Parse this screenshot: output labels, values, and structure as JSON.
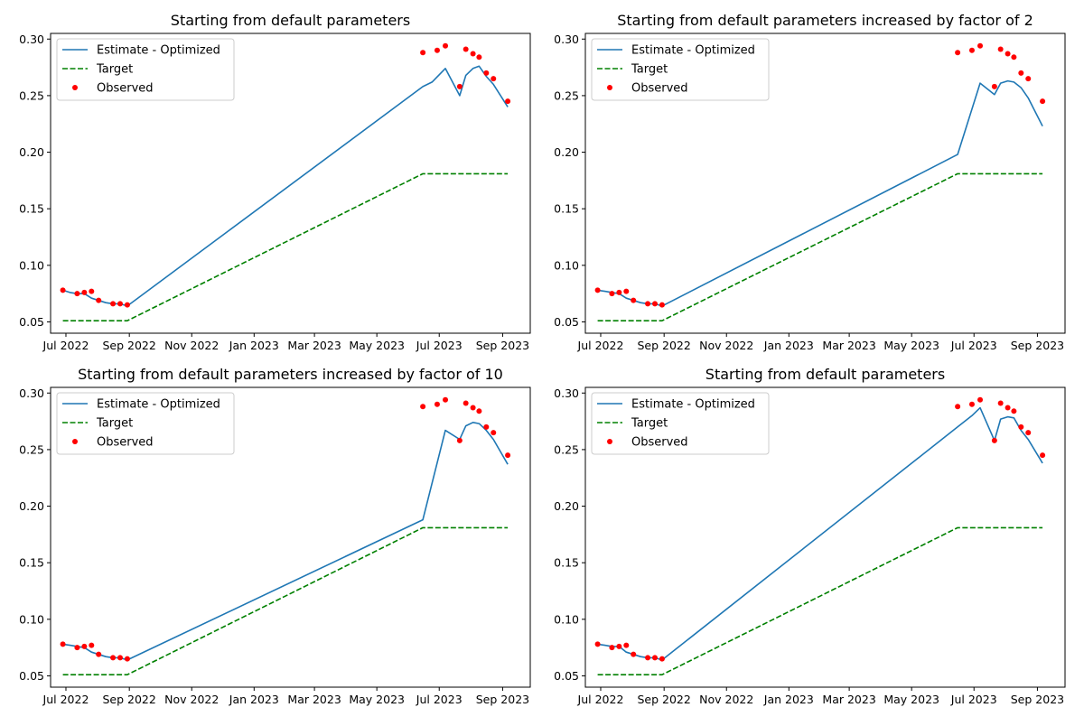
{
  "chart_data": [
    {
      "type": "line",
      "title": "Starting from default parameters",
      "xlabel": "",
      "ylabel": "",
      "x_ticks": [
        "Jul 2022",
        "Sep 2022",
        "Nov 2022",
        "Jan 2023",
        "Mar 2023",
        "May 2023",
        "Jul 2023",
        "Sep 2023"
      ],
      "y_ticks": [
        "0.05",
        "0.10",
        "0.15",
        "0.20",
        "0.25",
        "0.30"
      ],
      "ylim": [
        0.04,
        0.305
      ],
      "xlim": [
        "2022-06-16",
        "2023-09-28"
      ],
      "legend": {
        "placement": "upper-left",
        "entries": [
          "Estimate - Optimized",
          "Target",
          "Observed"
        ]
      },
      "series": [
        {
          "name": "Estimate - Optimized",
          "kind": "line",
          "color": "#1f77b4",
          "points": [
            [
              "2022-06-28",
              0.078
            ],
            [
              "2022-07-05",
              0.076
            ],
            [
              "2022-07-12",
              0.075
            ],
            [
              "2022-07-19",
              0.075
            ],
            [
              "2022-07-26",
              0.071
            ],
            [
              "2022-08-09",
              0.067
            ],
            [
              "2022-08-16",
              0.066
            ],
            [
              "2022-08-23",
              0.066
            ],
            [
              "2022-08-30",
              0.064
            ],
            [
              "2023-06-15",
              0.258
            ],
            [
              "2023-06-24",
              0.262
            ],
            [
              "2023-07-07",
              0.274
            ],
            [
              "2023-07-21",
              0.25
            ],
            [
              "2023-07-27",
              0.268
            ],
            [
              "2023-08-03",
              0.274
            ],
            [
              "2023-08-09",
              0.276
            ],
            [
              "2023-08-16",
              0.267
            ],
            [
              "2023-08-23",
              0.26
            ],
            [
              "2023-09-06",
              0.24
            ]
          ]
        },
        {
          "name": "Target",
          "kind": "dashed",
          "color": "#008000",
          "points": [
            [
              "2022-06-28",
              0.051
            ],
            [
              "2022-08-30",
              0.051
            ],
            [
              "2023-06-15",
              0.181
            ],
            [
              "2023-09-06",
              0.181
            ]
          ]
        },
        {
          "name": "Observed",
          "kind": "scatter",
          "color": "#ff0000",
          "points": [
            [
              "2022-06-28",
              0.078
            ],
            [
              "2022-07-12",
              0.075
            ],
            [
              "2022-07-19",
              0.076
            ],
            [
              "2022-07-26",
              0.077
            ],
            [
              "2022-08-02",
              0.069
            ],
            [
              "2022-08-16",
              0.066
            ],
            [
              "2022-08-23",
              0.066
            ],
            [
              "2022-08-30",
              0.065
            ],
            [
              "2023-06-15",
              0.288
            ],
            [
              "2023-06-29",
              0.29
            ],
            [
              "2023-07-07",
              0.294
            ],
            [
              "2023-07-21",
              0.258
            ],
            [
              "2023-07-27",
              0.291
            ],
            [
              "2023-08-03",
              0.287
            ],
            [
              "2023-08-09",
              0.284
            ],
            [
              "2023-08-16",
              0.27
            ],
            [
              "2023-08-23",
              0.265
            ],
            [
              "2023-09-06",
              0.245
            ]
          ]
        }
      ]
    },
    {
      "type": "line",
      "title": "Starting from default parameters increased by factor of 2",
      "xlabel": "",
      "ylabel": "",
      "x_ticks": [
        "Jul 2022",
        "Sep 2022",
        "Nov 2022",
        "Jan 2023",
        "Mar 2023",
        "May 2023",
        "Jul 2023",
        "Sep 2023"
      ],
      "y_ticks": [
        "0.05",
        "0.10",
        "0.15",
        "0.20",
        "0.25",
        "0.30"
      ],
      "ylim": [
        0.04,
        0.305
      ],
      "xlim": [
        "2022-06-16",
        "2023-09-28"
      ],
      "legend": {
        "placement": "upper-left",
        "entries": [
          "Estimate - Optimized",
          "Target",
          "Observed"
        ]
      },
      "series": [
        {
          "name": "Estimate - Optimized",
          "kind": "line",
          "color": "#1f77b4",
          "points": [
            [
              "2022-06-28",
              0.078
            ],
            [
              "2022-07-05",
              0.077
            ],
            [
              "2022-07-12",
              0.076
            ],
            [
              "2022-07-19",
              0.075
            ],
            [
              "2022-07-26",
              0.071
            ],
            [
              "2022-08-09",
              0.067
            ],
            [
              "2022-08-16",
              0.066
            ],
            [
              "2022-08-23",
              0.066
            ],
            [
              "2022-08-30",
              0.064
            ],
            [
              "2023-06-15",
              0.198
            ],
            [
              "2023-07-07",
              0.261
            ],
            [
              "2023-07-21",
              0.251
            ],
            [
              "2023-07-27",
              0.261
            ],
            [
              "2023-08-03",
              0.263
            ],
            [
              "2023-08-09",
              0.262
            ],
            [
              "2023-08-16",
              0.257
            ],
            [
              "2023-08-23",
              0.248
            ],
            [
              "2023-09-06",
              0.223
            ]
          ]
        },
        {
          "name": "Target",
          "kind": "dashed",
          "color": "#008000",
          "points": [
            [
              "2022-06-28",
              0.051
            ],
            [
              "2022-08-30",
              0.051
            ],
            [
              "2023-06-15",
              0.181
            ],
            [
              "2023-09-06",
              0.181
            ]
          ]
        },
        {
          "name": "Observed",
          "kind": "scatter",
          "color": "#ff0000",
          "points": [
            [
              "2022-06-28",
              0.078
            ],
            [
              "2022-07-12",
              0.075
            ],
            [
              "2022-07-19",
              0.076
            ],
            [
              "2022-07-26",
              0.077
            ],
            [
              "2022-08-02",
              0.069
            ],
            [
              "2022-08-16",
              0.066
            ],
            [
              "2022-08-23",
              0.066
            ],
            [
              "2022-08-30",
              0.065
            ],
            [
              "2023-06-15",
              0.288
            ],
            [
              "2023-06-29",
              0.29
            ],
            [
              "2023-07-07",
              0.294
            ],
            [
              "2023-07-21",
              0.258
            ],
            [
              "2023-07-27",
              0.291
            ],
            [
              "2023-08-03",
              0.287
            ],
            [
              "2023-08-09",
              0.284
            ],
            [
              "2023-08-16",
              0.27
            ],
            [
              "2023-08-23",
              0.265
            ],
            [
              "2023-09-06",
              0.245
            ]
          ]
        }
      ]
    },
    {
      "type": "line",
      "title": "Starting from default parameters increased by factor of 10",
      "xlabel": "",
      "ylabel": "",
      "x_ticks": [
        "Jul 2022",
        "Sep 2022",
        "Nov 2022",
        "Jan 2023",
        "Mar 2023",
        "May 2023",
        "Jul 2023",
        "Sep 2023"
      ],
      "y_ticks": [
        "0.05",
        "0.10",
        "0.15",
        "0.20",
        "0.25",
        "0.30"
      ],
      "ylim": [
        0.04,
        0.305
      ],
      "xlim": [
        "2022-06-16",
        "2023-09-28"
      ],
      "legend": {
        "placement": "upper-left",
        "entries": [
          "Estimate - Optimized",
          "Target",
          "Observed"
        ]
      },
      "series": [
        {
          "name": "Estimate - Optimized",
          "kind": "line",
          "color": "#1f77b4",
          "points": [
            [
              "2022-06-28",
              0.078
            ],
            [
              "2022-07-05",
              0.077
            ],
            [
              "2022-07-12",
              0.076
            ],
            [
              "2022-07-19",
              0.075
            ],
            [
              "2022-07-26",
              0.071
            ],
            [
              "2022-08-09",
              0.067
            ],
            [
              "2022-08-16",
              0.066
            ],
            [
              "2022-08-23",
              0.066
            ],
            [
              "2022-08-30",
              0.064
            ],
            [
              "2023-06-15",
              0.188
            ],
            [
              "2023-07-07",
              0.267
            ],
            [
              "2023-07-21",
              0.259
            ],
            [
              "2023-07-27",
              0.271
            ],
            [
              "2023-08-03",
              0.274
            ],
            [
              "2023-08-09",
              0.273
            ],
            [
              "2023-08-16",
              0.267
            ],
            [
              "2023-08-23",
              0.259
            ],
            [
              "2023-09-06",
              0.237
            ]
          ]
        },
        {
          "name": "Target",
          "kind": "dashed",
          "color": "#008000",
          "points": [
            [
              "2022-06-28",
              0.051
            ],
            [
              "2022-08-30",
              0.051
            ],
            [
              "2023-06-15",
              0.181
            ],
            [
              "2023-09-06",
              0.181
            ]
          ]
        },
        {
          "name": "Observed",
          "kind": "scatter",
          "color": "#ff0000",
          "points": [
            [
              "2022-06-28",
              0.078
            ],
            [
              "2022-07-12",
              0.075
            ],
            [
              "2022-07-19",
              0.076
            ],
            [
              "2022-07-26",
              0.077
            ],
            [
              "2022-08-02",
              0.069
            ],
            [
              "2022-08-16",
              0.066
            ],
            [
              "2022-08-23",
              0.066
            ],
            [
              "2022-08-30",
              0.065
            ],
            [
              "2023-06-15",
              0.288
            ],
            [
              "2023-06-29",
              0.29
            ],
            [
              "2023-07-07",
              0.294
            ],
            [
              "2023-07-21",
              0.258
            ],
            [
              "2023-07-27",
              0.291
            ],
            [
              "2023-08-03",
              0.287
            ],
            [
              "2023-08-09",
              0.284
            ],
            [
              "2023-08-16",
              0.27
            ],
            [
              "2023-08-23",
              0.265
            ],
            [
              "2023-09-06",
              0.245
            ]
          ]
        }
      ]
    },
    {
      "type": "line",
      "title": "Starting from default parameters",
      "xlabel": "",
      "ylabel": "",
      "x_ticks": [
        "Jul 2022",
        "Sep 2022",
        "Nov 2022",
        "Jan 2023",
        "Mar 2023",
        "May 2023",
        "Jul 2023",
        "Sep 2023"
      ],
      "y_ticks": [
        "0.05",
        "0.10",
        "0.15",
        "0.20",
        "0.25",
        "0.30"
      ],
      "ylim": [
        0.04,
        0.305
      ],
      "xlim": [
        "2022-06-16",
        "2023-09-28"
      ],
      "legend": {
        "placement": "upper-left",
        "entries": [
          "Estimate - Optimized",
          "Target",
          "Observed"
        ]
      },
      "series": [
        {
          "name": "Estimate - Optimized",
          "kind": "line",
          "color": "#1f77b4",
          "points": [
            [
              "2022-06-28",
              0.078
            ],
            [
              "2022-07-05",
              0.077
            ],
            [
              "2022-07-12",
              0.076
            ],
            [
              "2022-07-19",
              0.076
            ],
            [
              "2022-07-26",
              0.071
            ],
            [
              "2022-08-09",
              0.067
            ],
            [
              "2022-08-16",
              0.066
            ],
            [
              "2022-08-23",
              0.066
            ],
            [
              "2022-08-30",
              0.064
            ],
            [
              "2023-06-15",
              0.27
            ],
            [
              "2023-06-29",
              0.28
            ],
            [
              "2023-07-07",
              0.287
            ],
            [
              "2023-07-21",
              0.258
            ],
            [
              "2023-07-27",
              0.277
            ],
            [
              "2023-08-03",
              0.279
            ],
            [
              "2023-08-09",
              0.278
            ],
            [
              "2023-08-16",
              0.267
            ],
            [
              "2023-08-23",
              0.259
            ],
            [
              "2023-09-06",
              0.238
            ]
          ]
        },
        {
          "name": "Target",
          "kind": "dashed",
          "color": "#008000",
          "points": [
            [
              "2022-06-28",
              0.051
            ],
            [
              "2022-08-30",
              0.051
            ],
            [
              "2023-06-15",
              0.181
            ],
            [
              "2023-09-06",
              0.181
            ]
          ]
        },
        {
          "name": "Observed",
          "kind": "scatter",
          "color": "#ff0000",
          "points": [
            [
              "2022-06-28",
              0.078
            ],
            [
              "2022-07-12",
              0.075
            ],
            [
              "2022-07-19",
              0.076
            ],
            [
              "2022-07-26",
              0.077
            ],
            [
              "2022-08-02",
              0.069
            ],
            [
              "2022-08-16",
              0.066
            ],
            [
              "2022-08-23",
              0.066
            ],
            [
              "2022-08-30",
              0.065
            ],
            [
              "2023-06-15",
              0.288
            ],
            [
              "2023-06-29",
              0.29
            ],
            [
              "2023-07-07",
              0.294
            ],
            [
              "2023-07-21",
              0.258
            ],
            [
              "2023-07-27",
              0.291
            ],
            [
              "2023-08-03",
              0.287
            ],
            [
              "2023-08-09",
              0.284
            ],
            [
              "2023-08-16",
              0.27
            ],
            [
              "2023-08-23",
              0.265
            ],
            [
              "2023-09-06",
              0.245
            ]
          ]
        }
      ]
    }
  ]
}
